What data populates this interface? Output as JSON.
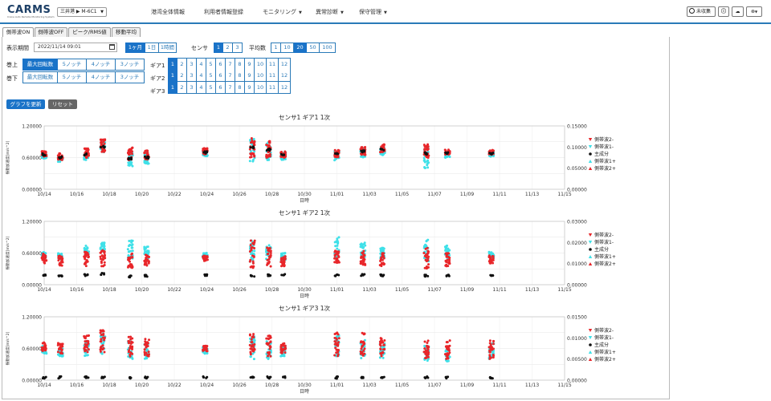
{
  "header": {
    "logo": "CARMS",
    "logo_sub": "Crane Auto Remote Monitoring System",
    "site_select": "三井港 ▶ M-6C1",
    "nav": [
      {
        "label": "港湾全体情報",
        "dropdown": false
      },
      {
        "label": "利用者情報登録",
        "dropdown": false
      },
      {
        "label": "モニタリング",
        "dropdown": true
      },
      {
        "label": "異常診断",
        "dropdown": true
      },
      {
        "label": "保守管理",
        "dropdown": true
      }
    ],
    "right": {
      "alerts_label": "未収集"
    }
  },
  "tabs": [
    {
      "label": "側帯波ON",
      "active": true
    },
    {
      "label": "側帯波OFF",
      "active": false
    },
    {
      "label": "ピーク/RMS値",
      "active": false
    },
    {
      "label": "移動平均",
      "active": false
    }
  ],
  "controls": {
    "period_label": "表示期間",
    "period_value": "2022/11/14 09:01",
    "range_buttons": [
      {
        "label": "1ヶ月",
        "on": true
      },
      {
        "label": "1日",
        "on": false
      },
      {
        "label": "1時間",
        "on": false
      }
    ],
    "sensor_label": "センサ",
    "sensor_buttons": [
      {
        "label": "1",
        "on": true
      },
      {
        "label": "2",
        "on": false
      },
      {
        "label": "3",
        "on": false
      }
    ],
    "avg_label": "平均数",
    "avg_buttons": [
      {
        "label": "1",
        "on": false
      },
      {
        "label": "10",
        "on": false
      },
      {
        "label": "20",
        "on": true
      },
      {
        "label": "50",
        "on": false
      },
      {
        "label": "100",
        "on": false
      }
    ],
    "hoist_up_label": "巻上",
    "hoist_down_label": "巻下",
    "notch_buttons": [
      "最大回転数",
      "5ノッチ",
      "4ノッチ",
      "3ノッチ"
    ],
    "gear_labels": [
      "ギア1",
      "ギア2",
      "ギア3"
    ],
    "gear_numbers": [
      "1",
      "2",
      "3",
      "4",
      "5",
      "6",
      "7",
      "8",
      "9",
      "10",
      "11",
      "12"
    ],
    "update_button": "グラフを更新",
    "reset_button": "リセット"
  },
  "colors": {
    "accent": "#1a73c8",
    "red": "#e8262a",
    "cyan": "#3fe0e8",
    "black": "#111111",
    "reset": "#666666"
  },
  "chart_data": [
    {
      "type": "scatter",
      "title": "センサ1 ギア1 1次",
      "xlabel": "日時",
      "ylabel": "振動加速度[m/s^2]",
      "ylim": [
        0,
        1.2
      ],
      "y_ticks": [
        "0.00000",
        "0.60000",
        "1.20000"
      ],
      "y2lim": [
        0,
        0.15
      ],
      "y2_ticks": [
        "0.00000",
        "0.05000",
        "0.10000",
        "0.15000"
      ],
      "x_ticks": [
        "10/14",
        "10/16",
        "10/18",
        "10/20",
        "10/22",
        "10/24",
        "10/26",
        "10/28",
        "10/30",
        "11/01",
        "11/03",
        "11/05",
        "11/07",
        "11/09",
        "11/11",
        "11/13",
        "11/15"
      ],
      "legend": [
        {
          "name": "側帯波2-",
          "color": "#e8262a",
          "marker": "v"
        },
        {
          "name": "側帯波1-",
          "color": "#3fe0e8",
          "marker": "v"
        },
        {
          "name": "主成分",
          "color": "#111111",
          "marker": "o"
        },
        {
          "name": "側帯波1+",
          "color": "#3fe0e8",
          "marker": "^"
        },
        {
          "name": "側帯波2+",
          "color": "#e8262a",
          "marker": "^"
        }
      ],
      "clusters": [
        {
          "day": 0.0,
          "red": [
            0.62,
            0.72
          ],
          "cyan": [
            0.58,
            0.68
          ],
          "black": 0.66
        },
        {
          "day": 1.0,
          "red": [
            0.55,
            0.68
          ],
          "cyan": [
            0.52,
            0.62
          ],
          "black": 0.6
        },
        {
          "day": 2.6,
          "red": [
            0.6,
            0.78
          ],
          "cyan": [
            0.55,
            0.7
          ],
          "black": 0.66
        },
        {
          "day": 3.6,
          "red": [
            0.7,
            0.95
          ],
          "cyan": [
            0.7,
            0.95
          ],
          "black": 0.8
        },
        {
          "day": 5.3,
          "red": [
            0.55,
            0.8
          ],
          "cyan": [
            0.42,
            0.72
          ],
          "black": 0.58
        },
        {
          "day": 6.3,
          "red": [
            0.55,
            0.75
          ],
          "cyan": [
            0.48,
            0.7
          ],
          "black": 0.6
        },
        {
          "day": 9.9,
          "red": [
            0.66,
            0.78
          ],
          "cyan": [
            0.62,
            0.74
          ],
          "black": 0.7
        },
        {
          "day": 12.8,
          "red": [
            0.6,
            0.98
          ],
          "cyan": [
            0.45,
            0.95
          ],
          "black": 0.8
        },
        {
          "day": 13.8,
          "red": [
            0.6,
            0.92
          ],
          "cyan": [
            0.55,
            0.9
          ],
          "black": 0.75
        },
        {
          "day": 14.7,
          "red": [
            0.6,
            0.72
          ],
          "cyan": [
            0.55,
            0.7
          ],
          "black": 0.66
        },
        {
          "day": 18.0,
          "red": [
            0.6,
            0.75
          ],
          "cyan": [
            0.55,
            0.72
          ],
          "black": 0.68
        },
        {
          "day": 19.6,
          "red": [
            0.65,
            0.8
          ],
          "cyan": [
            0.6,
            0.78
          ],
          "black": 0.72
        },
        {
          "day": 20.8,
          "red": [
            0.7,
            0.85
          ],
          "cyan": [
            0.65,
            0.8
          ],
          "black": 0.75
        },
        {
          "day": 23.5,
          "red": [
            0.6,
            0.85
          ],
          "cyan": [
            0.4,
            0.8
          ],
          "black": 0.68
        },
        {
          "day": 24.8,
          "red": [
            0.65,
            0.75
          ],
          "cyan": [
            0.6,
            0.7
          ],
          "black": 0.68
        },
        {
          "day": 27.5,
          "red": [
            0.65,
            0.75
          ],
          "cyan": [
            0.62,
            0.72
          ],
          "black": 0.68
        }
      ]
    },
    {
      "type": "scatter",
      "title": "センサ1 ギア2 1次",
      "xlabel": "日時",
      "ylabel": "振動加速度[m/s^2]",
      "ylim": [
        0,
        1.2
      ],
      "y_ticks": [
        "0.00000",
        "0.60000",
        "1.20000"
      ],
      "y2lim": [
        0,
        0.03
      ],
      "y2_ticks": [
        "0.00000",
        "0.01000",
        "0.02000",
        "0.03000"
      ],
      "x_ticks": [
        "10/14",
        "10/16",
        "10/18",
        "10/20",
        "10/22",
        "10/24",
        "10/26",
        "10/28",
        "10/30",
        "11/01",
        "11/03",
        "11/05",
        "11/07",
        "11/09",
        "11/11",
        "11/13",
        "11/15"
      ],
      "legend": [
        {
          "name": "側帯波2-",
          "color": "#e8262a",
          "marker": "v"
        },
        {
          "name": "側帯波1-",
          "color": "#3fe0e8",
          "marker": "v"
        },
        {
          "name": "主成分",
          "color": "#111111",
          "marker": "o"
        },
        {
          "name": "側帯波1+",
          "color": "#3fe0e8",
          "marker": "^"
        },
        {
          "name": "側帯波2+",
          "color": "#e8262a",
          "marker": "^"
        }
      ],
      "clusters": [
        {
          "day": 0.0,
          "red": [
            0.4,
            0.6
          ],
          "cyan": [
            0.5,
            0.62
          ],
          "black": 0.18
        },
        {
          "day": 1.0,
          "red": [
            0.35,
            0.55
          ],
          "cyan": [
            0.48,
            0.6
          ],
          "black": 0.17
        },
        {
          "day": 2.6,
          "red": [
            0.35,
            0.65
          ],
          "cyan": [
            0.55,
            0.75
          ],
          "black": 0.18
        },
        {
          "day": 3.6,
          "red": [
            0.35,
            0.65
          ],
          "cyan": [
            0.6,
            0.85
          ],
          "black": 0.2
        },
        {
          "day": 5.3,
          "red": [
            0.3,
            0.6
          ],
          "cyan": [
            0.5,
            0.85
          ],
          "black": 0.16
        },
        {
          "day": 6.3,
          "red": [
            0.35,
            0.6
          ],
          "cyan": [
            0.5,
            0.72
          ],
          "black": 0.17
        },
        {
          "day": 9.9,
          "red": [
            0.45,
            0.55
          ],
          "cyan": [
            0.5,
            0.6
          ],
          "black": 0.18
        },
        {
          "day": 12.8,
          "red": [
            0.3,
            0.85
          ],
          "cyan": [
            0.4,
            0.85
          ],
          "black": 0.17
        },
        {
          "day": 13.8,
          "red": [
            0.3,
            0.7
          ],
          "cyan": [
            0.45,
            0.75
          ],
          "black": 0.18
        },
        {
          "day": 14.7,
          "red": [
            0.35,
            0.55
          ],
          "cyan": [
            0.45,
            0.6
          ],
          "black": 0.18
        },
        {
          "day": 18.0,
          "red": [
            0.4,
            0.65
          ],
          "cyan": [
            0.5,
            0.9
          ],
          "black": 0.18
        },
        {
          "day": 19.6,
          "red": [
            0.35,
            0.65
          ],
          "cyan": [
            0.5,
            0.8
          ],
          "black": 0.18
        },
        {
          "day": 20.8,
          "red": [
            0.35,
            0.6
          ],
          "cyan": [
            0.5,
            0.7
          ],
          "black": 0.18
        },
        {
          "day": 23.5,
          "red": [
            0.3,
            0.7
          ],
          "cyan": [
            0.4,
            0.85
          ],
          "black": 0.17
        },
        {
          "day": 24.8,
          "red": [
            0.35,
            0.6
          ],
          "cyan": [
            0.5,
            0.75
          ],
          "black": 0.17
        },
        {
          "day": 27.5,
          "red": [
            0.4,
            0.55
          ],
          "cyan": [
            0.5,
            0.62
          ],
          "black": 0.18
        }
      ]
    },
    {
      "type": "scatter",
      "title": "センサ1 ギア3 1次",
      "xlabel": "日時",
      "ylabel": "振動加速度[m/s^2]",
      "ylim": [
        0,
        1.2
      ],
      "y_ticks": [
        "0.00000",
        "0.60000",
        "1.20000"
      ],
      "y2lim": [
        0,
        0.015
      ],
      "y2_ticks": [
        "0.00000",
        "0.00500",
        "0.01000",
        "0.01500"
      ],
      "x_ticks": [
        "10/14",
        "10/16",
        "10/18",
        "10/20",
        "10/22",
        "10/24",
        "10/26",
        "10/28",
        "10/30",
        "11/01",
        "11/03",
        "11/05",
        "11/07",
        "11/09",
        "11/11",
        "11/13",
        "11/15"
      ],
      "legend": [
        {
          "name": "側帯波2-",
          "color": "#e8262a",
          "marker": "v"
        },
        {
          "name": "側帯波1-",
          "color": "#3fe0e8",
          "marker": "v"
        },
        {
          "name": "主成分",
          "color": "#111111",
          "marker": "o"
        },
        {
          "name": "側帯波1+",
          "color": "#3fe0e8",
          "marker": "^"
        },
        {
          "name": "側帯波2+",
          "color": "#e8262a",
          "marker": "^"
        }
      ],
      "clusters": [
        {
          "day": 0.0,
          "red": [
            0.55,
            0.72
          ],
          "cyan": [
            0.5,
            0.65
          ],
          "black": 0.05
        },
        {
          "day": 1.0,
          "red": [
            0.5,
            0.7
          ],
          "cyan": [
            0.45,
            0.6
          ],
          "black": 0.05
        },
        {
          "day": 2.6,
          "red": [
            0.5,
            0.85
          ],
          "cyan": [
            0.45,
            0.75
          ],
          "black": 0.05
        },
        {
          "day": 3.6,
          "red": [
            0.5,
            0.95
          ],
          "cyan": [
            0.45,
            0.9
          ],
          "black": 0.05
        },
        {
          "day": 5.3,
          "red": [
            0.45,
            0.85
          ],
          "cyan": [
            0.4,
            0.75
          ],
          "black": 0.05
        },
        {
          "day": 6.3,
          "red": [
            0.45,
            0.8
          ],
          "cyan": [
            0.4,
            0.7
          ],
          "black": 0.05
        },
        {
          "day": 9.9,
          "red": [
            0.55,
            0.65
          ],
          "cyan": [
            0.5,
            0.62
          ],
          "black": 0.05
        },
        {
          "day": 12.8,
          "red": [
            0.45,
            0.9
          ],
          "cyan": [
            0.4,
            0.85
          ],
          "black": 0.05
        },
        {
          "day": 13.8,
          "red": [
            0.45,
            0.85
          ],
          "cyan": [
            0.4,
            0.75
          ],
          "black": 0.05
        },
        {
          "day": 14.7,
          "red": [
            0.5,
            0.7
          ],
          "cyan": [
            0.45,
            0.65
          ],
          "black": 0.05
        },
        {
          "day": 18.0,
          "red": [
            0.45,
            0.95
          ],
          "cyan": [
            0.4,
            0.85
          ],
          "black": 0.05
        },
        {
          "day": 19.6,
          "red": [
            0.45,
            0.9
          ],
          "cyan": [
            0.4,
            0.8
          ],
          "black": 0.05
        },
        {
          "day": 20.8,
          "red": [
            0.45,
            0.8
          ],
          "cyan": [
            0.4,
            0.7
          ],
          "black": 0.05
        },
        {
          "day": 23.5,
          "red": [
            0.4,
            0.75
          ],
          "cyan": [
            0.35,
            0.65
          ],
          "black": 0.05
        },
        {
          "day": 24.8,
          "red": [
            0.4,
            0.75
          ],
          "cyan": [
            0.35,
            0.65
          ],
          "black": 0.05
        },
        {
          "day": 27.5,
          "red": [
            0.4,
            0.75
          ],
          "cyan": [
            0.35,
            0.7
          ],
          "black": 0.05
        }
      ]
    }
  ]
}
